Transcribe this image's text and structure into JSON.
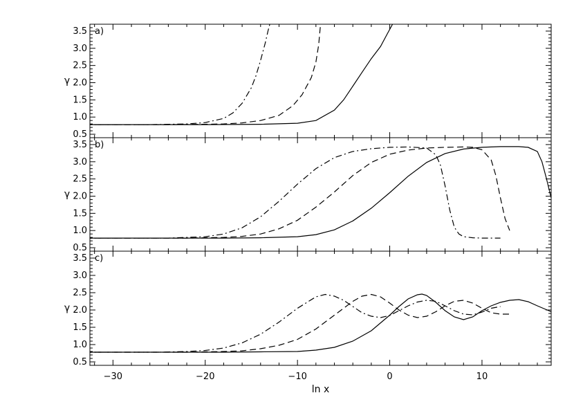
{
  "chart_data": [
    {
      "type": "line",
      "panel_label": "a)",
      "xlabel": "",
      "ylabel": "γ",
      "xlim": [
        -32.5,
        17.5
      ],
      "ylim": [
        0.4,
        3.7
      ],
      "yticks": [
        "0.5",
        "1.0",
        "1.5",
        "2.0",
        "2.5",
        "3.0",
        "3.5"
      ],
      "series": [
        {
          "style": "dashdot",
          "x": [
            -33,
            -26,
            -22,
            -20,
            -18,
            -17,
            -16,
            -15,
            -14.5,
            -14,
            -13.5,
            -13.2,
            -13
          ],
          "y": [
            0.78,
            0.78,
            0.8,
            0.84,
            0.96,
            1.12,
            1.4,
            1.85,
            2.2,
            2.65,
            3.15,
            3.5,
            3.7
          ]
        },
        {
          "style": "dashed",
          "x": [
            -33,
            -24,
            -20,
            -18,
            -16,
            -14,
            -12,
            -10.5,
            -9.5,
            -8.5,
            -8,
            -7.7,
            -7.5
          ],
          "y": [
            0.78,
            0.78,
            0.79,
            0.8,
            0.83,
            0.9,
            1.05,
            1.33,
            1.65,
            2.15,
            2.6,
            3.1,
            3.7
          ]
        },
        {
          "style": "solid",
          "x": [
            -33,
            -20,
            -14,
            -10,
            -8,
            -6,
            -5,
            -4,
            -3,
            -2,
            -1,
            -0.3,
            0.3
          ],
          "y": [
            0.78,
            0.78,
            0.79,
            0.82,
            0.9,
            1.2,
            1.5,
            1.9,
            2.3,
            2.7,
            3.05,
            3.4,
            3.7
          ]
        }
      ]
    },
    {
      "type": "line",
      "panel_label": "b)",
      "xlabel": "",
      "ylabel": "γ",
      "xlim": [
        -32.5,
        17.5
      ],
      "ylim": [
        0.4,
        3.7
      ],
      "yticks": [
        "0.5",
        "1.0",
        "1.5",
        "2.0",
        "2.5",
        "3.0",
        "3.5"
      ],
      "series": [
        {
          "style": "dashdot",
          "x": [
            -33,
            -24,
            -20,
            -18,
            -16,
            -14,
            -12,
            -10,
            -8,
            -6,
            -4,
            -2,
            0,
            2,
            4,
            5,
            5.5,
            6,
            6.5,
            7,
            7.5,
            8,
            9,
            10,
            12
          ],
          "y": [
            0.78,
            0.78,
            0.82,
            0.9,
            1.08,
            1.4,
            1.85,
            2.35,
            2.8,
            3.12,
            3.3,
            3.38,
            3.42,
            3.43,
            3.4,
            3.2,
            2.9,
            2.3,
            1.6,
            1.1,
            0.9,
            0.82,
            0.79,
            0.78,
            0.78
          ]
        },
        {
          "style": "dashed",
          "x": [
            -33,
            -22,
            -18,
            -16,
            -14,
            -12,
            -10,
            -8,
            -6,
            -4,
            -2,
            0,
            2,
            4,
            6,
            8,
            9,
            10,
            11,
            11.5,
            12,
            12.5,
            13
          ],
          "y": [
            0.78,
            0.78,
            0.8,
            0.83,
            0.9,
            1.05,
            1.3,
            1.68,
            2.12,
            2.6,
            2.98,
            3.22,
            3.34,
            3.4,
            3.42,
            3.43,
            3.42,
            3.35,
            3.05,
            2.6,
            1.95,
            1.35,
            1.0
          ]
        },
        {
          "style": "solid",
          "x": [
            -33,
            -18,
            -14,
            -10,
            -8,
            -6,
            -4,
            -2,
            0,
            2,
            4,
            6,
            8,
            10,
            12,
            14,
            15,
            16,
            16.5,
            17,
            17.5
          ],
          "y": [
            0.78,
            0.78,
            0.79,
            0.82,
            0.88,
            1.02,
            1.28,
            1.65,
            2.1,
            2.58,
            2.98,
            3.24,
            3.37,
            3.42,
            3.44,
            3.44,
            3.42,
            3.3,
            3.0,
            2.5,
            1.95
          ]
        }
      ]
    },
    {
      "type": "line",
      "panel_label": "c)",
      "xlabel": "ln x",
      "ylabel": "γ",
      "xlim": [
        -32.5,
        17.5
      ],
      "ylim": [
        0.4,
        3.7
      ],
      "yticks": [
        "0.5",
        "1.0",
        "1.5",
        "2.0",
        "2.5",
        "3.0",
        "3.5"
      ],
      "xticks": [
        "−30",
        "−20",
        "−10",
        "0",
        "10"
      ],
      "series": [
        {
          "style": "dashdot",
          "x": [
            -33,
            -25,
            -22,
            -20,
            -18,
            -16,
            -14,
            -12,
            -10,
            -8,
            -7,
            -6,
            -5,
            -4,
            -3,
            -2,
            -1,
            0,
            1,
            2,
            3,
            4,
            5,
            6,
            7,
            8,
            9,
            10,
            11,
            12
          ],
          "y": [
            0.78,
            0.78,
            0.8,
            0.83,
            0.9,
            1.05,
            1.3,
            1.65,
            2.05,
            2.38,
            2.45,
            2.4,
            2.28,
            2.1,
            1.92,
            1.82,
            1.78,
            1.84,
            1.98,
            2.12,
            2.23,
            2.28,
            2.25,
            2.12,
            1.98,
            1.88,
            1.86,
            1.94,
            2.05,
            2.1
          ]
        },
        {
          "style": "dashed",
          "x": [
            -33,
            -22,
            -18,
            -16,
            -14,
            -12,
            -10,
            -8,
            -6,
            -4,
            -3,
            -2,
            -1,
            0,
            1,
            2,
            3,
            4,
            5,
            6,
            7,
            8,
            9,
            10,
            11,
            12,
            13
          ],
          "y": [
            0.78,
            0.78,
            0.8,
            0.82,
            0.88,
            0.98,
            1.15,
            1.45,
            1.85,
            2.25,
            2.4,
            2.45,
            2.38,
            2.2,
            2.0,
            1.85,
            1.78,
            1.82,
            1.95,
            2.12,
            2.25,
            2.28,
            2.2,
            2.05,
            1.92,
            1.88,
            1.88
          ]
        },
        {
          "style": "solid",
          "x": [
            -33,
            -18,
            -14,
            -10,
            -8,
            -6,
            -4,
            -2,
            0,
            1,
            2,
            3,
            3.5,
            4,
            5,
            6,
            7,
            8,
            9,
            10,
            11,
            12,
            13,
            14,
            15,
            16,
            17.5
          ],
          "y": [
            0.78,
            0.78,
            0.79,
            0.8,
            0.84,
            0.92,
            1.1,
            1.4,
            1.85,
            2.1,
            2.32,
            2.44,
            2.46,
            2.42,
            2.22,
            1.98,
            1.8,
            1.72,
            1.8,
            1.98,
            2.12,
            2.22,
            2.28,
            2.3,
            2.24,
            2.12,
            1.95
          ]
        }
      ]
    }
  ]
}
